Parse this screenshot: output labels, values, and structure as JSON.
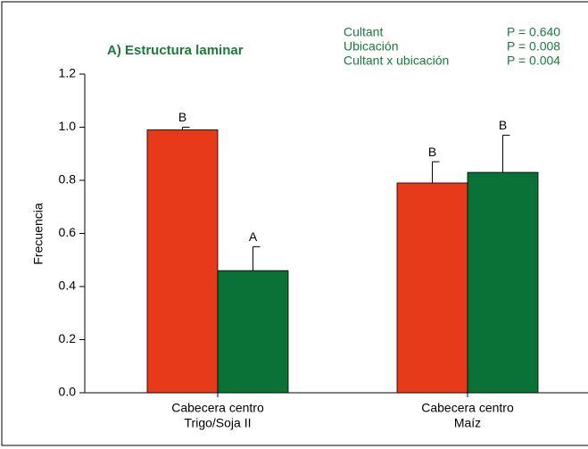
{
  "chart_data": {
    "type": "bar",
    "title": "A) Estructura laminar",
    "ylabel": "Frecuencia",
    "stats": [
      {
        "label": "Cultant",
        "value": "P = 0.640"
      },
      {
        "label": "Ubicación",
        "value": "P = 0.008"
      },
      {
        "label": "Cultant x ubicación",
        "value": "P = 0.004"
      }
    ],
    "categories": [
      [
        "Cabecera centro",
        "Trigo/Soja II"
      ],
      [
        "Cabecera centro",
        "Maíz"
      ]
    ],
    "series": [
      {
        "color": "#e63a1a",
        "values": [
          0.99,
          0.79
        ],
        "errors": [
          0.01,
          0.08
        ],
        "letters": [
          "B",
          "B"
        ]
      },
      {
        "color": "#0a7236",
        "values": [
          0.46,
          0.83
        ],
        "errors": [
          0.09,
          0.14
        ],
        "letters": [
          "A",
          "B"
        ]
      }
    ],
    "ylim": [
      0,
      1.2
    ],
    "yticks": [
      {
        "value": 0,
        "label": "0.0"
      },
      {
        "value": 0.2,
        "label": "0.2"
      },
      {
        "value": 0.4,
        "label": "0.4"
      },
      {
        "value": 0.6,
        "label": "0.6"
      },
      {
        "value": 0.8,
        "label": "0.8"
      },
      {
        "value": 1,
        "label": "1.0"
      },
      {
        "value": 1.2,
        "label": "1.2"
      }
    ]
  }
}
